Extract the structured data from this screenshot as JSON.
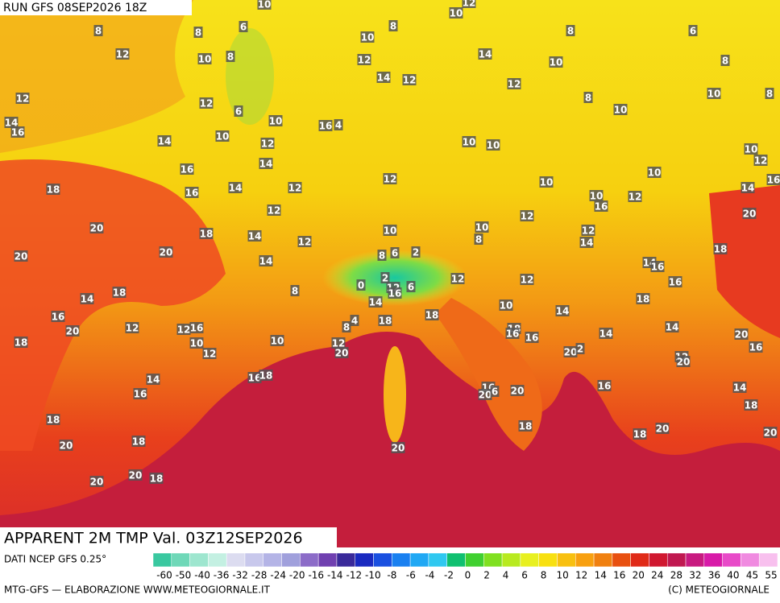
{
  "header": {
    "run": "RUN GFS 08SEP2026 18Z"
  },
  "title": "APPARENT 2M TMP Val. 03Z12SEP2026",
  "footer": {
    "source": "DATI NCEP GFS 0.25°",
    "credit": "MTG-GFS — ELABORAZIONE WWW.METEOGIORNALE.IT",
    "copyright": "(C) METEOGIORNALE"
  },
  "legend": {
    "labels": [
      -60,
      -50,
      -40,
      -36,
      -32,
      -28,
      -24,
      -20,
      -16,
      -14,
      -12,
      -10,
      -8,
      -6,
      -4,
      -2,
      0,
      2,
      4,
      6,
      8,
      10,
      12,
      14,
      16,
      20,
      24,
      28,
      32,
      36,
      40,
      45,
      55
    ]
  },
  "map": {
    "labels": [
      8,
      12,
      12,
      14,
      16,
      14,
      16,
      18,
      16,
      20,
      20,
      20,
      18,
      18,
      14,
      16,
      20,
      18,
      12,
      12,
      16,
      10,
      12,
      14,
      16,
      18,
      20,
      18,
      20,
      20,
      18,
      12,
      6,
      10,
      8,
      8,
      6,
      10,
      12,
      14,
      14,
      10,
      12,
      12,
      14,
      14,
      12,
      8,
      10,
      16,
      18,
      16,
      4,
      10,
      8,
      12,
      14,
      12,
      10,
      14,
      10,
      12,
      8,
      6,
      8,
      10,
      8,
      10,
      10,
      10,
      12,
      10,
      10,
      10,
      12,
      16,
      14,
      20,
      10,
      16,
      12,
      12,
      10,
      8,
      10,
      12,
      14,
      14,
      16,
      18,
      16,
      18,
      8,
      6,
      2,
      0,
      2,
      12,
      6,
      16,
      12,
      12,
      10,
      14,
      14,
      18,
      18,
      4,
      8,
      12,
      20,
      18,
      16,
      16,
      14,
      14,
      20,
      16,
      20,
      2,
      12,
      20,
      16,
      14,
      18,
      16,
      20,
      6,
      20,
      18,
      20,
      18,
      20,
      20,
      8,
      10,
      12
    ]
  }
}
